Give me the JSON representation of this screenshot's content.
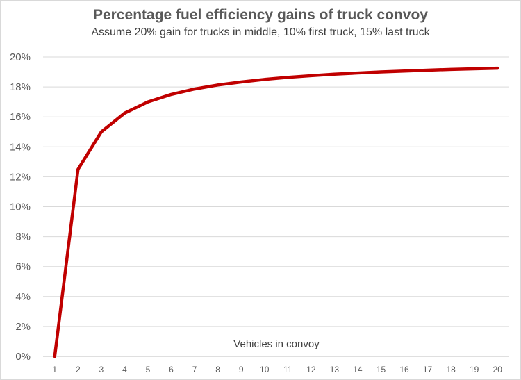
{
  "chart_data": {
    "type": "line",
    "title": "Percentage fuel efficiency gains of truck convoy",
    "subtitle": "Assume 20% gain for trucks in middle, 10% first truck, 15% last truck",
    "xlabel": "Vehicles in convoy",
    "ylabel": "",
    "categories": [
      "1",
      "2",
      "3",
      "4",
      "5",
      "6",
      "7",
      "8",
      "9",
      "10",
      "11",
      "12",
      "13",
      "14",
      "15",
      "16",
      "17",
      "18",
      "19",
      "20"
    ],
    "y_tick_labels": [
      "0%",
      "2%",
      "4%",
      "6%",
      "8%",
      "10%",
      "12%",
      "14%",
      "16%",
      "18%",
      "20%"
    ],
    "ylim": [
      0,
      20
    ],
    "grid": true,
    "series": [
      {
        "color": "#c00000",
        "values": [
          0,
          12.5,
          15,
          16.25,
          17,
          17.5,
          17.86,
          18.13,
          18.33,
          18.5,
          18.64,
          18.75,
          18.85,
          18.93,
          19,
          19.06,
          19.12,
          19.17,
          19.21,
          19.25
        ]
      }
    ]
  }
}
